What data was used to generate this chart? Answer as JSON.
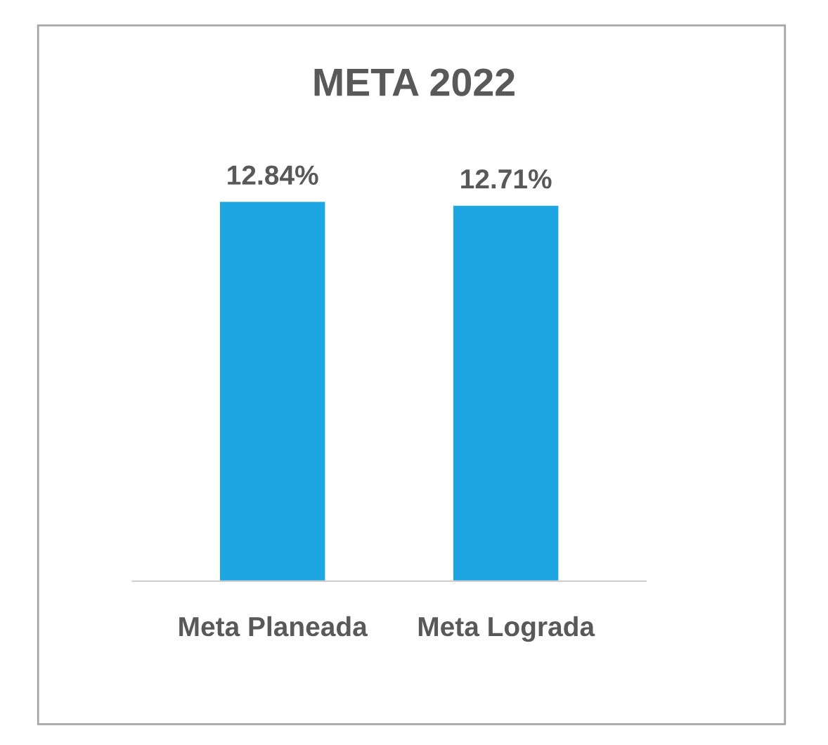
{
  "chart_data": {
    "type": "bar",
    "title": "META 2022",
    "categories": [
      "Meta Planeada",
      "Meta Lograda"
    ],
    "values": [
      12.84,
      12.71
    ],
    "value_labels": [
      "12.84%",
      "12.71%"
    ],
    "color": "#1ea6e3"
  }
}
